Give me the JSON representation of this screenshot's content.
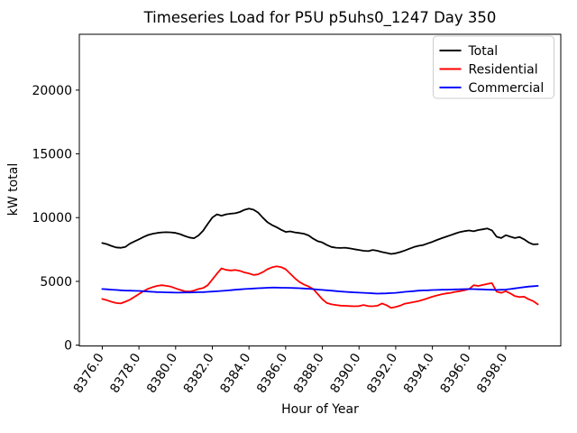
{
  "window": {
    "background": "#ffffff"
  },
  "chart_data": {
    "type": "line",
    "title": "Timeseries Load for P5U p5uhs0_1247  Day 350",
    "xlabel": "Hour of Year",
    "ylabel": "kW total",
    "grid": false,
    "legend_position": "upper right",
    "xlim": [
      8374.75,
      8401.0
    ],
    "ylim": [
      -65,
      24380
    ],
    "xticks": [
      8376,
      8378,
      8380,
      8382,
      8384,
      8386,
      8388,
      8390,
      8392,
      8394,
      8396,
      8398
    ],
    "xtick_labels": [
      "8376.0",
      "8378.0",
      "8380.0",
      "8382.0",
      "8384.0",
      "8386.0",
      "8388.0",
      "8390.0",
      "8392.0",
      "8394.0",
      "8396.0",
      "8398.0"
    ],
    "yticks": [
      0,
      5000,
      10000,
      15000,
      20000
    ],
    "ytick_labels": [
      "0",
      "5000",
      "10000",
      "15000",
      "20000"
    ],
    "x_start": 8376.0,
    "x_step": 0.25,
    "series": [
      {
        "name": "Total",
        "color": "#000000",
        "values": [
          8010,
          7920,
          7780,
          7660,
          7630,
          7700,
          7950,
          8130,
          8300,
          8480,
          8640,
          8740,
          8800,
          8840,
          8860,
          8840,
          8800,
          8700,
          8560,
          8440,
          8380,
          8600,
          8980,
          9500,
          10000,
          10260,
          10150,
          10260,
          10310,
          10340,
          10440,
          10610,
          10700,
          10620,
          10400,
          10000,
          9650,
          9420,
          9250,
          9050,
          8880,
          8920,
          8840,
          8790,
          8740,
          8600,
          8350,
          8150,
          8050,
          7850,
          7700,
          7640,
          7620,
          7640,
          7580,
          7520,
          7460,
          7400,
          7370,
          7460,
          7400,
          7300,
          7230,
          7150,
          7200,
          7300,
          7420,
          7560,
          7700,
          7790,
          7850,
          7980,
          8100,
          8250,
          8380,
          8500,
          8620,
          8750,
          8870,
          8940,
          8990,
          8930,
          9030,
          9080,
          9150,
          9000,
          8500,
          8400,
          8620,
          8500,
          8400,
          8480,
          8300,
          8050,
          7900,
          7920
        ]
      },
      {
        "name": "Residential",
        "color": "#ff0000",
        "values": [
          3620,
          3520,
          3400,
          3300,
          3270,
          3400,
          3560,
          3780,
          4000,
          4230,
          4420,
          4550,
          4650,
          4700,
          4650,
          4580,
          4450,
          4330,
          4220,
          4200,
          4280,
          4400,
          4480,
          4700,
          5150,
          5600,
          6020,
          5900,
          5860,
          5890,
          5830,
          5700,
          5620,
          5500,
          5550,
          5720,
          5950,
          6100,
          6180,
          6120,
          5950,
          5600,
          5250,
          4950,
          4750,
          4600,
          4400,
          4000,
          3600,
          3300,
          3200,
          3150,
          3100,
          3080,
          3060,
          3050,
          3060,
          3150,
          3060,
          3050,
          3090,
          3270,
          3130,
          2920,
          3000,
          3100,
          3250,
          3320,
          3380,
          3450,
          3560,
          3680,
          3800,
          3900,
          3980,
          4050,
          4100,
          4180,
          4230,
          4300,
          4400,
          4700,
          4640,
          4720,
          4800,
          4860,
          4200,
          4100,
          4230,
          4050,
          3850,
          3770,
          3800,
          3600,
          3450,
          3200
        ]
      },
      {
        "name": "Commercial",
        "color": "#0000ff",
        "values": [
          4400,
          4380,
          4350,
          4330,
          4300,
          4280,
          4270,
          4260,
          4250,
          4230,
          4200,
          4180,
          4160,
          4150,
          4140,
          4130,
          4120,
          4120,
          4130,
          4130,
          4140,
          4150,
          4160,
          4180,
          4200,
          4220,
          4250,
          4280,
          4310,
          4340,
          4370,
          4400,
          4420,
          4440,
          4460,
          4480,
          4500,
          4510,
          4510,
          4500,
          4500,
          4490,
          4480,
          4460,
          4440,
          4420,
          4390,
          4360,
          4330,
          4300,
          4270,
          4240,
          4210,
          4180,
          4160,
          4140,
          4120,
          4100,
          4080,
          4060,
          4040,
          4050,
          4060,
          4080,
          4100,
          4140,
          4180,
          4210,
          4240,
          4270,
          4290,
          4300,
          4320,
          4330,
          4340,
          4350,
          4360,
          4370,
          4380,
          4390,
          4400,
          4390,
          4380,
          4370,
          4350,
          4340,
          4330,
          4340,
          4360,
          4400,
          4450,
          4500,
          4550,
          4590,
          4620,
          4650
        ]
      }
    ],
    "legend": {
      "entries": [
        "Total",
        "Residential",
        "Commercial"
      ],
      "edge_color": "#cccccc"
    }
  }
}
